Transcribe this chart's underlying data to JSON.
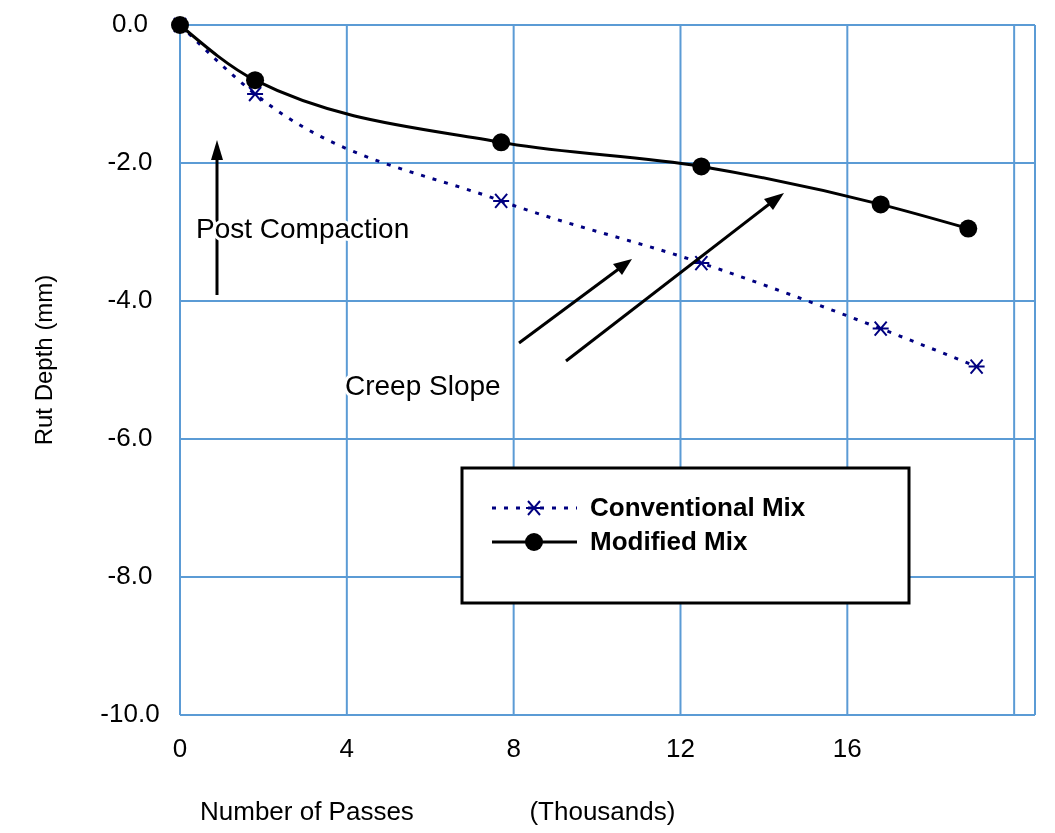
{
  "chart_data": {
    "type": "line",
    "xlabel": "Number of Passes                (Thousands)",
    "ylabel": "Rut Depth (mm)",
    "xlim": [
      0,
      20.5
    ],
    "xticks": [
      0,
      4,
      8,
      12,
      16,
      {
        "value": 20,
        "label": null
      }
    ],
    "ylim": [
      -10,
      0
    ],
    "yticks": [
      {
        "value": 0,
        "label": "0.0"
      },
      {
        "value": -2,
        "label": "-2.0"
      },
      {
        "value": -4,
        "label": "-4.0"
      },
      {
        "value": -6,
        "label": "-6.0"
      },
      {
        "value": -8,
        "label": "-8.0"
      },
      {
        "value": -10,
        "label": "-10.0"
      }
    ],
    "grid": true,
    "legend": "right",
    "annotations": [
      "Post Compaction",
      "Creep Slope"
    ],
    "series": [
      {
        "name": "Conventional Mix",
        "color": "#000080",
        "marker": "cross",
        "line_style": "dotted",
        "x": [
          0,
          1.8,
          7.7,
          12.5,
          16.8,
          19.1
        ],
        "values": [
          0,
          -1.0,
          -2.55,
          -3.45,
          -4.4,
          -4.95
        ]
      },
      {
        "name": "Modified Mix",
        "color": "#000000",
        "marker": "circle",
        "line_style": "solid",
        "x": [
          0,
          1.8,
          7.7,
          12.5,
          16.8,
          18.9
        ],
        "values": [
          0,
          -0.8,
          -1.7,
          -2.05,
          -2.6,
          -2.95
        ]
      }
    ]
  }
}
